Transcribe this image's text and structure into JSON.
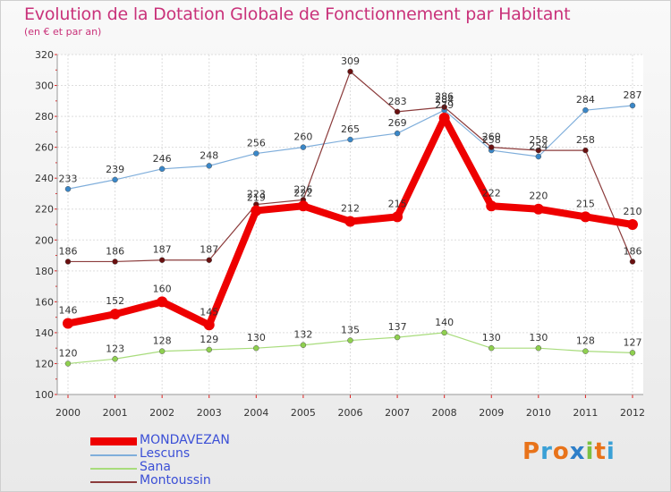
{
  "title": "Evolution de la Dotation Globale de Fonctionnement par Habitant",
  "subtitle": "(en € et par an)",
  "logo_text": "Proxiti",
  "logo_colors": [
    "#e8731a",
    "#3aa0d6",
    "#e8731a",
    "#2e7fc9",
    "#7bc142",
    "#e8731a",
    "#3aa0d6"
  ],
  "chart_data": {
    "type": "line",
    "x": [
      "2000",
      "2001",
      "2002",
      "2003",
      "2004",
      "2005",
      "2006",
      "2007",
      "2008",
      "2009",
      "2010",
      "2011",
      "2012"
    ],
    "ylim": [
      100,
      320
    ],
    "yticks": [
      "100",
      "120",
      "140",
      "160",
      "180",
      "200",
      "220",
      "240",
      "260",
      "280",
      "300",
      "320"
    ],
    "grid": true,
    "legend_position": "bottom-left",
    "series": [
      {
        "name": "MONDAVEZAN",
        "color": "#ee0000",
        "marker": "#ee0000",
        "thick": true,
        "values": [
          146,
          152,
          160,
          145,
          219,
          222,
          212,
          215,
          279,
          222,
          220,
          215,
          210
        ],
        "labels": [
          "146",
          "152",
          "160",
          "145",
          "219",
          "222",
          "212",
          "215",
          "279",
          "222",
          "220",
          "215",
          "210"
        ]
      },
      {
        "name": "Lescuns",
        "color": "#7faedb",
        "marker": "#3a87c8",
        "thick": false,
        "values": [
          233,
          239,
          246,
          248,
          256,
          260,
          265,
          269,
          284,
          258,
          254,
          284,
          287
        ],
        "labels": [
          "233",
          "239",
          "246",
          "248",
          "256",
          "260",
          "265",
          "269",
          "284",
          "258",
          "254",
          "284",
          "287"
        ]
      },
      {
        "name": "Sana",
        "color": "#a8dc7c",
        "marker": "#8fd04f",
        "thick": false,
        "values": [
          120,
          123,
          128,
          129,
          130,
          132,
          135,
          137,
          140,
          130,
          130,
          128,
          127
        ],
        "labels": [
          "120",
          "123",
          "128",
          "129",
          "130",
          "132",
          "135",
          "137",
          "140",
          "130",
          "130",
          "128",
          "127"
        ]
      },
      {
        "name": "Montoussin",
        "color": "#8b3b3b",
        "marker": "#6a1010",
        "thick": false,
        "values": [
          186,
          186,
          187,
          187,
          223,
          226,
          309,
          283,
          286,
          260,
          258,
          258,
          186
        ],
        "labels": [
          "186",
          "186",
          "187",
          "187",
          "223",
          "226",
          "309",
          "283",
          "286",
          "260",
          "258",
          "258",
          "186"
        ]
      }
    ]
  }
}
